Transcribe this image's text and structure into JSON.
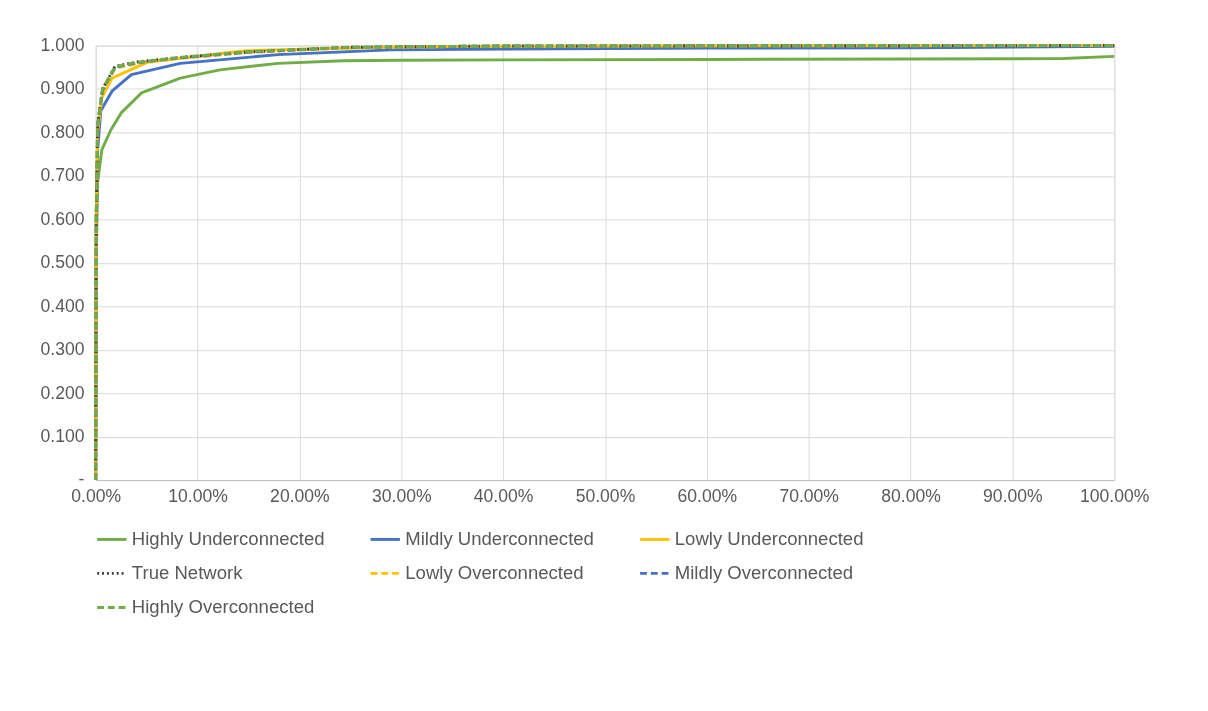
{
  "chart_data": {
    "type": "line",
    "legend": "bottom",
    "grid": true,
    "marker": "none",
    "xlim": [
      0,
      100
    ],
    "ylim": [
      0,
      1.0
    ],
    "xticks": [
      {
        "value": 0,
        "label": "0.00%"
      },
      {
        "value": 10,
        "label": "10.00%"
      },
      {
        "value": 20,
        "label": "20.00%"
      },
      {
        "value": 30,
        "label": "30.00%"
      },
      {
        "value": 40,
        "label": "40.00%"
      },
      {
        "value": 50,
        "label": "50.00%"
      },
      {
        "value": 60,
        "label": "60.00%"
      },
      {
        "value": 70,
        "label": "70.00%"
      },
      {
        "value": 80,
        "label": "80.00%"
      },
      {
        "value": 90,
        "label": "90.00%"
      },
      {
        "value": 100,
        "label": "100.00%"
      }
    ],
    "yticks": [
      {
        "value": 0,
        "label": "-"
      },
      {
        "value": 0.1,
        "label": "0.100"
      },
      {
        "value": 0.2,
        "label": "0.200"
      },
      {
        "value": 0.3,
        "label": "0.300"
      },
      {
        "value": 0.4,
        "label": "0.400"
      },
      {
        "value": 0.5,
        "label": "0.500"
      },
      {
        "value": 0.6,
        "label": "0.600"
      },
      {
        "value": 0.7,
        "label": "0.700"
      },
      {
        "value": 0.8,
        "label": "0.800"
      },
      {
        "value": 0.9,
        "label": "0.900"
      },
      {
        "value": 1.0,
        "label": "1.000"
      }
    ],
    "series": [
      {
        "name": "Highly Underconnected",
        "color": "#70ad47",
        "line_style": "solid",
        "x": [
          0,
          0.05,
          0.19,
          0.6,
          1.47,
          2.5,
          4.5,
          8.3,
          12.2,
          17.9,
          24.3,
          30,
          40,
          60,
          80,
          95,
          100
        ],
        "values": [
          0,
          0.5,
          0.685,
          0.76,
          0.805,
          0.845,
          0.891,
          0.925,
          0.944,
          0.959,
          0.965,
          0.966,
          0.967,
          0.968,
          0.969,
          0.97,
          0.975
        ]
      },
      {
        "name": "Mildly Underconnected",
        "color": "#4472c4",
        "line_style": "solid",
        "x": [
          0,
          0.05,
          0.19,
          0.5,
          1.6,
          3.5,
          8.3,
          17.9,
          29,
          40,
          60,
          80,
          100
        ],
        "values": [
          0,
          0.6,
          0.76,
          0.85,
          0.895,
          0.933,
          0.959,
          0.979,
          0.99,
          0.992,
          0.994,
          0.995,
          0.998
        ]
      },
      {
        "name": "Lowly Underconnected",
        "color": "#ffc000",
        "line_style": "solid",
        "x": [
          0,
          0.05,
          0.19,
          0.6,
          1.6,
          5.1,
          14.7,
          30,
          50,
          100
        ],
        "values": [
          0,
          0.6,
          0.8,
          0.88,
          0.925,
          0.962,
          0.988,
          0.997,
          0.999,
          1.0
        ]
      },
      {
        "name": "True Network",
        "color": "#404040",
        "line_style": "dotted",
        "x": [
          0,
          0.05,
          0.19,
          0.67,
          1.9,
          4,
          8,
          15,
          25,
          40,
          100
        ],
        "values": [
          0,
          0.6,
          0.82,
          0.9,
          0.952,
          0.962,
          0.972,
          0.985,
          0.996,
          0.999,
          1.0
        ]
      },
      {
        "name": "Lowly Overconnected",
        "color": "#ffc000",
        "line_style": "dashed",
        "x": [
          0,
          0.05,
          0.19,
          0.67,
          1.9,
          4,
          8,
          15,
          25,
          40,
          100
        ],
        "values": [
          0,
          0.58,
          0.81,
          0.895,
          0.948,
          0.958,
          0.97,
          0.984,
          0.995,
          0.999,
          1.0
        ]
      },
      {
        "name": "Mildly Overconnected",
        "color": "#4472c4",
        "line_style": "dashed",
        "x": [
          0,
          0.05,
          0.19,
          0.67,
          1.9,
          4,
          8,
          15,
          25,
          40,
          100
        ],
        "values": [
          0,
          0.59,
          0.815,
          0.897,
          0.95,
          0.96,
          0.971,
          0.985,
          0.996,
          0.999,
          1.0
        ]
      },
      {
        "name": "Highly Overconnected",
        "color": "#70ad47",
        "line_style": "dashed",
        "x": [
          0,
          0.05,
          0.19,
          0.67,
          1.9,
          4,
          8,
          15,
          25,
          40,
          100
        ],
        "values": [
          0,
          0.6,
          0.82,
          0.9,
          0.951,
          0.961,
          0.972,
          0.986,
          0.996,
          0.999,
          1.0
        ]
      }
    ]
  }
}
